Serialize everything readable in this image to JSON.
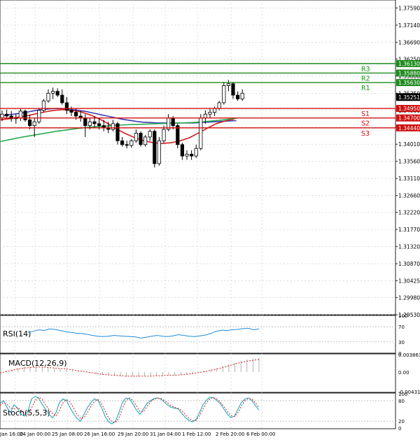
{
  "chart_data": {
    "type": "candlestick",
    "price_axis": {
      "ticks": [
        "1.37590",
        "1.37140",
        "1.36690",
        "1.36250",
        "1.35800",
        "1.35350",
        "1.34900",
        "1.34460",
        "1.34010",
        "1.33560",
        "1.33110",
        "1.32660",
        "1.32220",
        "1.31770",
        "1.31320",
        "1.30870",
        "1.30425",
        "1.29980",
        "1.29530"
      ],
      "range": [
        1.2953,
        1.378
      ]
    },
    "time_axis": {
      "labels": [
        "Jan 16:00",
        "24 Jan 00:00",
        "25 Jan 08:00",
        "26 Jan 16:00",
        "29 Jan 20:00",
        "31 Jan 04:00",
        "1 Feb 12:00",
        "2 Feb 20:00",
        "6 Feb 00:00"
      ]
    },
    "levels": [
      {
        "name": "R3",
        "value": 1.3613,
        "label": "1.36130",
        "color": "#1f8a1f"
      },
      {
        "name": "R2",
        "value": 1.3588,
        "label": "1.35880",
        "color": "#1f8a1f"
      },
      {
        "name": "R1",
        "value": 1.3563,
        "label": "1.35630",
        "color": "#1f8a1f"
      },
      {
        "name": "S1",
        "value": 1.3495,
        "label": "1.34950",
        "color": "#d01010"
      },
      {
        "name": "S2",
        "value": 1.347,
        "label": "1.34700",
        "color": "#d01010"
      },
      {
        "name": "S3",
        "value": 1.3444,
        "label": "1.34440",
        "color": "#d01010"
      }
    ],
    "current_price": {
      "value": 1.3525,
      "label": "1.35251"
    },
    "candles": [
      [
        1.347,
        1.349,
        1.3462,
        1.348
      ],
      [
        1.348,
        1.3492,
        1.347,
        1.3475
      ],
      [
        1.3475,
        1.3488,
        1.346,
        1.3468
      ],
      [
        1.3468,
        1.348,
        1.3455,
        1.347
      ],
      [
        1.347,
        1.3495,
        1.3462,
        1.3488
      ],
      [
        1.3488,
        1.3492,
        1.346,
        1.3465
      ],
      [
        1.3465,
        1.3478,
        1.344,
        1.345
      ],
      [
        1.345,
        1.347,
        1.342,
        1.346
      ],
      [
        1.346,
        1.3495,
        1.3455,
        1.349
      ],
      [
        1.349,
        1.352,
        1.3485,
        1.3515
      ],
      [
        1.3515,
        1.3545,
        1.351,
        1.3535
      ],
      [
        1.3535,
        1.355,
        1.352,
        1.354
      ],
      [
        1.354,
        1.3548,
        1.3525,
        1.353
      ],
      [
        1.353,
        1.3545,
        1.3505,
        1.351
      ],
      [
        1.351,
        1.3525,
        1.348,
        1.349
      ],
      [
        1.349,
        1.35,
        1.3475,
        1.3485
      ],
      [
        1.3485,
        1.3495,
        1.3465,
        1.3475
      ],
      [
        1.3475,
        1.3488,
        1.346,
        1.347
      ],
      [
        1.347,
        1.348,
        1.342,
        1.345
      ],
      [
        1.345,
        1.347,
        1.344,
        1.346
      ],
      [
        1.346,
        1.3475,
        1.3445,
        1.3455
      ],
      [
        1.3455,
        1.347,
        1.344,
        1.345
      ],
      [
        1.345,
        1.3465,
        1.3435,
        1.3445
      ],
      [
        1.3445,
        1.346,
        1.343,
        1.344
      ],
      [
        1.344,
        1.3465,
        1.3435,
        1.3455
      ],
      [
        1.3455,
        1.346,
        1.34,
        1.341
      ],
      [
        1.341,
        1.342,
        1.3395,
        1.34
      ],
      [
        1.34,
        1.341,
        1.339,
        1.3398
      ],
      [
        1.3398,
        1.3415,
        1.3392,
        1.341
      ],
      [
        1.341,
        1.344,
        1.3405,
        1.343
      ],
      [
        1.343,
        1.3435,
        1.3395,
        1.34
      ],
      [
        1.34,
        1.3425,
        1.3395,
        1.342
      ],
      [
        1.342,
        1.344,
        1.341,
        1.3435
      ],
      [
        1.3435,
        1.344,
        1.334,
        1.335
      ],
      [
        1.335,
        1.342,
        1.3345,
        1.341
      ],
      [
        1.341,
        1.345,
        1.3405,
        1.344
      ],
      [
        1.344,
        1.348,
        1.3435,
        1.347
      ],
      [
        1.347,
        1.3475,
        1.344,
        1.345
      ],
      [
        1.345,
        1.3455,
        1.339,
        1.34
      ],
      [
        1.34,
        1.3405,
        1.336,
        1.337
      ],
      [
        1.337,
        1.3385,
        1.336,
        1.3375
      ],
      [
        1.3375,
        1.3385,
        1.336,
        1.337
      ],
      [
        1.337,
        1.34,
        1.3365,
        1.339
      ],
      [
        1.339,
        1.348,
        1.3385,
        1.347
      ],
      [
        1.347,
        1.349,
        1.3455,
        1.348
      ],
      [
        1.348,
        1.3495,
        1.347,
        1.3485
      ],
      [
        1.3485,
        1.35,
        1.3475,
        1.3495
      ],
      [
        1.3495,
        1.3515,
        1.349,
        1.351
      ],
      [
        1.351,
        1.3565,
        1.3505,
        1.3555
      ],
      [
        1.3555,
        1.357,
        1.354,
        1.356
      ],
      [
        1.356,
        1.3565,
        1.352,
        1.353
      ],
      [
        1.353,
        1.354,
        1.3515,
        1.352
      ],
      [
        1.352,
        1.3545,
        1.3515,
        1.3535
      ]
    ],
    "moving_averages": [
      {
        "color": "#3c3cb4",
        "values": [
          1.3475,
          1.3478,
          1.348,
          1.3483,
          1.3486,
          1.349,
          1.3492,
          1.3494,
          1.3495,
          1.3494,
          1.3492,
          1.349,
          1.3487,
          1.3483,
          1.3479,
          1.3475,
          1.3471,
          1.3467,
          1.3464,
          1.3461,
          1.3459,
          1.3458,
          1.3457,
          1.3457,
          1.3457,
          1.3457,
          1.3457,
          1.3457,
          1.3458,
          1.3459,
          1.346,
          1.3461,
          1.3462,
          1.3463
        ]
      },
      {
        "color": "#d21e1e",
        "values": [
          1.3465,
          1.3468,
          1.3472,
          1.3476,
          1.3481,
          1.3486,
          1.349,
          1.3492,
          1.349,
          1.3486,
          1.3478,
          1.3468,
          1.3455,
          1.344,
          1.3428,
          1.3418,
          1.341,
          1.3405,
          1.3403,
          1.3405,
          1.341,
          1.3418,
          1.343,
          1.3443,
          1.3455,
          1.3462,
          1.3467
        ]
      },
      {
        "color": "#28aa50",
        "values": [
          1.3408,
          1.3414,
          1.342,
          1.3425,
          1.343,
          1.3435,
          1.3439,
          1.3443,
          1.3446,
          1.3448,
          1.345,
          1.3452,
          1.3453,
          1.3454,
          1.3455,
          1.3456,
          1.3457,
          1.3458,
          1.346,
          1.3463,
          1.3466,
          1.347
        ]
      }
    ],
    "indicators": {
      "rsi": {
        "label": "RSI(14)",
        "ticks": [
          "100",
          "70",
          "30",
          "0"
        ],
        "range": [
          0,
          100
        ],
        "levels": [
          70,
          30
        ],
        "values": [
          55,
          58,
          62,
          60,
          64,
          63,
          60,
          57,
          55,
          53,
          52,
          50,
          47,
          45,
          44,
          45,
          47,
          46,
          45,
          44,
          43,
          40,
          42,
          45,
          47,
          45,
          44,
          46,
          49,
          47,
          45,
          44,
          46,
          48,
          52,
          58,
          61,
          60,
          62,
          63,
          65,
          66,
          62,
          64
        ]
      },
      "macd": {
        "label": "MACD(12,26,9)",
        "ticks": [
          "0.003863",
          "0.00",
          "-0.004314"
        ],
        "range": [
          -0.004314,
          0.003863
        ],
        "histogram": [
          0.0,
          0.0003,
          0.0006,
          0.0009,
          0.0011,
          0.0012,
          0.0012,
          0.0011,
          0.001,
          0.0009,
          0.0008,
          0.0006,
          0.0004,
          0.0002,
          0.0,
          -0.0002,
          -0.0004,
          -0.0006,
          -0.0007,
          -0.0008,
          -0.0009,
          -0.001,
          -0.001,
          -0.001,
          -0.0009,
          -0.0009,
          -0.0008,
          -0.0008,
          -0.0007,
          -0.0007,
          -0.0006,
          -0.0005,
          -0.0003,
          -0.0001,
          0.0002,
          0.0005,
          0.0009,
          0.0013,
          0.0017,
          0.0021,
          0.0025,
          0.0028,
          0.003,
          0.0031
        ],
        "signal": [
          -0.0002,
          0.0001,
          0.0004,
          0.0007,
          0.0009,
          0.001,
          0.0011,
          0.0011,
          0.001,
          0.0009,
          0.0008,
          0.0007,
          0.0005,
          0.0003,
          0.0001,
          -0.0001,
          -0.0003,
          -0.0005,
          -0.0006,
          -0.0007,
          -0.0008,
          -0.0009,
          -0.0009,
          -0.0009,
          -0.0009,
          -0.0009,
          -0.0008,
          -0.0008,
          -0.0007,
          -0.0007,
          -0.0006,
          -0.0005,
          -0.0003,
          -0.0001,
          0.0001,
          0.0004,
          0.0007,
          0.001,
          0.0014,
          0.0018,
          0.0021,
          0.0024,
          0.0026,
          0.0028
        ]
      },
      "stoch": {
        "label": "Stoch(5,5,3)",
        "ticks": [
          "100",
          "80",
          "20",
          "0"
        ],
        "range": [
          0,
          100
        ],
        "levels": [
          80,
          20
        ],
        "main": [
          72,
          80,
          60,
          45,
          68,
          58,
          40,
          35,
          50,
          85,
          92,
          88,
          70,
          55,
          40,
          30,
          45,
          75,
          85,
          80,
          60,
          42,
          28,
          20,
          40,
          60,
          75,
          85,
          80,
          60,
          35,
          18,
          12,
          20,
          45,
          75,
          88,
          85,
          70,
          52,
          40,
          55,
          72,
          80,
          86,
          88,
          84,
          75,
          66,
          60,
          58,
          55,
          42,
          30,
          22,
          18,
          25,
          45,
          68,
          82,
          90,
          88,
          80,
          70,
          55,
          40,
          30,
          35,
          55,
          75,
          85,
          88,
          80,
          65,
          52
        ],
        "signal": [
          66,
          74,
          70,
          58,
          56,
          60,
          52,
          40,
          40,
          58,
          80,
          90,
          84,
          68,
          54,
          42,
          35,
          52,
          74,
          83,
          76,
          58,
          40,
          28,
          30,
          46,
          64,
          78,
          83,
          72,
          50,
          30,
          18,
          16,
          30,
          58,
          80,
          88,
          80,
          64,
          48,
          48,
          62,
          76,
          84,
          87,
          86,
          80,
          72,
          64,
          60,
          57,
          50,
          38,
          28,
          22,
          22,
          36,
          56,
          74,
          86,
          89,
          84,
          75,
          62,
          48,
          36,
          33,
          45,
          65,
          80,
          86,
          84,
          73,
          60
        ]
      }
    }
  }
}
